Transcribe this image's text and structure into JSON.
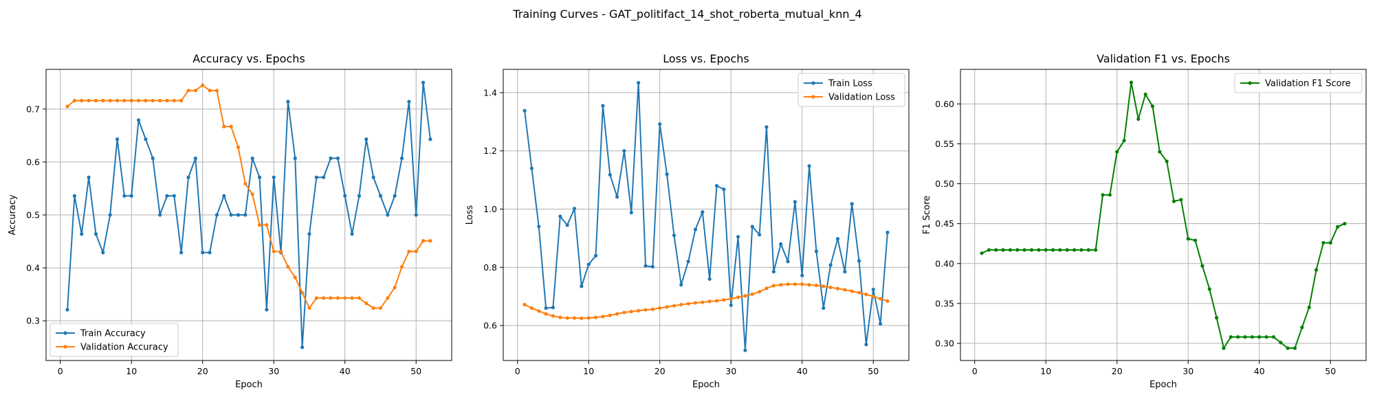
{
  "figure": {
    "suptitle": "Training Curves - GAT_politifact_14_shot_roberta_mutual_knn_4"
  },
  "chart_data": [
    {
      "type": "line",
      "title": "Accuracy vs. Epochs",
      "xlabel": "Epoch",
      "ylabel": "Accuracy",
      "xlim": [
        -2,
        55
      ],
      "ylim": [
        0.225,
        0.775
      ],
      "xticks": [
        0,
        10,
        20,
        30,
        40,
        50
      ],
      "yticks": [
        0.3,
        0.4,
        0.5,
        0.6,
        0.7
      ],
      "tick_decimals": 1,
      "grid": true,
      "legend": "lower left",
      "x": [
        1,
        2,
        3,
        4,
        5,
        6,
        7,
        8,
        9,
        10,
        11,
        12,
        13,
        14,
        15,
        16,
        17,
        18,
        19,
        20,
        21,
        22,
        23,
        24,
        25,
        26,
        27,
        28,
        29,
        30,
        31,
        32,
        33,
        34,
        35,
        36,
        37,
        38,
        39,
        40,
        41,
        42,
        43,
        44,
        45,
        46,
        47,
        48,
        49,
        50,
        51,
        52
      ],
      "series": [
        {
          "name": "Train Accuracy",
          "color": "#1f77b4",
          "values": [
            0.321,
            0.536,
            0.464,
            0.571,
            0.464,
            0.429,
            0.5,
            0.643,
            0.536,
            0.536,
            0.679,
            0.643,
            0.607,
            0.5,
            0.536,
            0.536,
            0.429,
            0.571,
            0.607,
            0.429,
            0.429,
            0.5,
            0.536,
            0.5,
            0.5,
            0.5,
            0.607,
            0.571,
            0.321,
            0.571,
            0.429,
            0.714,
            0.607,
            0.25,
            0.464,
            0.571,
            0.571,
            0.607,
            0.607,
            0.536,
            0.464,
            0.536,
            0.643,
            0.571,
            0.536,
            0.5,
            0.536,
            0.607,
            0.714,
            0.5,
            0.75,
            0.643
          ]
        },
        {
          "name": "Validation Accuracy",
          "color": "#ff7f0e",
          "values": [
            0.705,
            0.716,
            0.716,
            0.716,
            0.716,
            0.716,
            0.716,
            0.716,
            0.716,
            0.716,
            0.716,
            0.716,
            0.716,
            0.716,
            0.716,
            0.716,
            0.716,
            0.735,
            0.735,
            0.745,
            0.735,
            0.735,
            0.667,
            0.667,
            0.628,
            0.559,
            0.539,
            0.481,
            0.481,
            0.431,
            0.431,
            0.402,
            0.382,
            0.353,
            0.324,
            0.343,
            0.343,
            0.343,
            0.343,
            0.343,
            0.343,
            0.343,
            0.333,
            0.324,
            0.324,
            0.343,
            0.363,
            0.402,
            0.431,
            0.431,
            0.451,
            0.451
          ]
        }
      ]
    },
    {
      "type": "line",
      "title": "Loss vs. Epochs",
      "xlabel": "Epoch",
      "ylabel": "Loss",
      "xlim": [
        -2,
        55
      ],
      "ylim": [
        0.48,
        1.48
      ],
      "xticks": [
        0,
        10,
        20,
        30,
        40,
        50
      ],
      "yticks": [
        0.6,
        0.8,
        1.0,
        1.2,
        1.4
      ],
      "tick_decimals": 1,
      "grid": true,
      "legend": "upper right",
      "x": [
        1,
        2,
        3,
        4,
        5,
        6,
        7,
        8,
        9,
        10,
        11,
        12,
        13,
        14,
        15,
        16,
        17,
        18,
        19,
        20,
        21,
        22,
        23,
        24,
        25,
        26,
        27,
        28,
        29,
        30,
        31,
        32,
        33,
        34,
        35,
        36,
        37,
        38,
        39,
        40,
        41,
        42,
        43,
        44,
        45,
        46,
        47,
        48,
        49,
        50,
        51,
        52
      ],
      "series": [
        {
          "name": "Train Loss",
          "color": "#1f77b4",
          "values": [
            1.338,
            1.14,
            0.94,
            0.66,
            0.662,
            0.975,
            0.945,
            1.002,
            0.735,
            0.81,
            0.84,
            1.355,
            1.118,
            1.042,
            1.2,
            0.988,
            1.434,
            0.805,
            0.802,
            1.292,
            1.12,
            0.91,
            0.74,
            0.82,
            0.93,
            0.99,
            0.76,
            1.08,
            1.068,
            0.67,
            0.905,
            0.515,
            0.94,
            0.912,
            1.282,
            0.785,
            0.88,
            0.82,
            1.025,
            0.772,
            1.148,
            0.855,
            0.66,
            0.808,
            0.898,
            0.785,
            1.018,
            0.822,
            0.535,
            0.724,
            0.606,
            0.92
          ]
        },
        {
          "name": "Validation Loss",
          "color": "#ff7f0e",
          "values": [
            0.672,
            0.66,
            0.65,
            0.64,
            0.633,
            0.628,
            0.626,
            0.626,
            0.625,
            0.626,
            0.628,
            0.631,
            0.635,
            0.64,
            0.645,
            0.648,
            0.651,
            0.654,
            0.656,
            0.66,
            0.664,
            0.668,
            0.672,
            0.675,
            0.678,
            0.68,
            0.683,
            0.685,
            0.688,
            0.692,
            0.697,
            0.702,
            0.708,
            0.716,
            0.728,
            0.737,
            0.74,
            0.742,
            0.742,
            0.742,
            0.74,
            0.738,
            0.735,
            0.731,
            0.727,
            0.723,
            0.718,
            0.713,
            0.707,
            0.7,
            0.692,
            0.684
          ]
        }
      ]
    },
    {
      "type": "line",
      "title": "Validation F1 vs. Epochs",
      "xlabel": "Epoch",
      "ylabel": "F1 Score",
      "xlim": [
        -2,
        55
      ],
      "ylim": [
        0.2785,
        0.6433
      ],
      "xticks": [
        0,
        10,
        20,
        30,
        40,
        50
      ],
      "yticks": [
        0.3,
        0.35,
        0.4,
        0.45,
        0.5,
        0.55,
        0.6
      ],
      "tick_decimals": 2,
      "grid": true,
      "legend": "upper right",
      "x": [
        1,
        2,
        3,
        4,
        5,
        6,
        7,
        8,
        9,
        10,
        11,
        12,
        13,
        14,
        15,
        16,
        17,
        18,
        19,
        20,
        21,
        22,
        23,
        24,
        25,
        26,
        27,
        28,
        29,
        30,
        31,
        32,
        33,
        34,
        35,
        36,
        37,
        38,
        39,
        40,
        41,
        42,
        43,
        44,
        45,
        46,
        47,
        48,
        49,
        50,
        51,
        52
      ],
      "series": [
        {
          "name": "Validation F1 Score",
          "color": "#008000",
          "values": [
            0.413,
            0.417,
            0.417,
            0.417,
            0.417,
            0.417,
            0.417,
            0.417,
            0.417,
            0.417,
            0.417,
            0.417,
            0.417,
            0.417,
            0.417,
            0.417,
            0.417,
            0.486,
            0.486,
            0.54,
            0.554,
            0.627,
            0.581,
            0.612,
            0.597,
            0.54,
            0.528,
            0.478,
            0.48,
            0.431,
            0.429,
            0.397,
            0.368,
            0.332,
            0.294,
            0.308,
            0.308,
            0.308,
            0.308,
            0.308,
            0.308,
            0.308,
            0.301,
            0.294,
            0.294,
            0.32,
            0.345,
            0.392,
            0.426,
            0.426,
            0.446,
            0.45
          ]
        }
      ]
    }
  ]
}
